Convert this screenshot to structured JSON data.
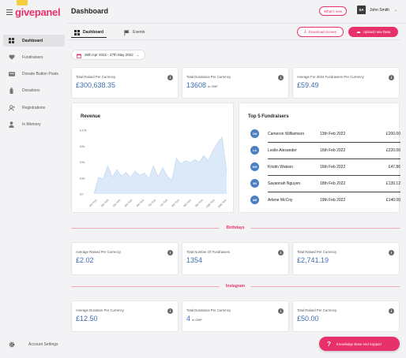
{
  "brand": {
    "name": "givepanel"
  },
  "sidebar": {
    "items": [
      {
        "label": "Dashboard",
        "icon": "grid-icon",
        "active": true
      },
      {
        "label": "Fundraisers",
        "icon": "heart-icon",
        "active": false
      },
      {
        "label": "Donate Button Posts",
        "icon": "card-icon",
        "active": false
      },
      {
        "label": "Donations",
        "icon": "money-icon",
        "active": false
      },
      {
        "label": "Registrations",
        "icon": "user-add-icon",
        "active": false
      },
      {
        "label": "In Memory",
        "icon": "user-icon",
        "active": false
      }
    ],
    "settings_label": "Account Settings"
  },
  "header": {
    "title": "Dashboard",
    "whats_new": "What's new",
    "user_initials": "SA",
    "user_name": "John Smith"
  },
  "tabs": [
    {
      "label": "Dashboard",
      "active": true
    },
    {
      "label": "Events",
      "active": false
    }
  ],
  "actions": {
    "download": "Download Screen",
    "upload": "Upload new Data"
  },
  "date_range": "26th Apr 2022 - 27th May 2022",
  "stats_top": [
    {
      "label": "Total Raised Per Currency",
      "value": "£300,638.35",
      "unit": ""
    },
    {
      "label": "Total Donations Per Currency",
      "value": "13608",
      "unit": "in GBP"
    },
    {
      "label": "Average For 2034 Fundraisers Per Currency",
      "value": "£59.49",
      "unit": ""
    }
  ],
  "revenue": {
    "title": "Revenue",
    "y_ticks": [
      "£10k",
      "£8k",
      "£5k",
      "£3k",
      "£0"
    ],
    "x_ticks": [
      "4th Feb",
      "5th Feb",
      "5th Feb",
      "6th Feb",
      "6th Feb",
      "7th Feb",
      "7th Feb",
      "8th Feb",
      "8th Feb",
      "9th Feb",
      "10th Feb",
      "10th Feb"
    ]
  },
  "chart_data": {
    "type": "area",
    "title": "Revenue",
    "xlabel": "",
    "ylabel": "",
    "ylim": [
      0,
      10000
    ],
    "x_tick_labels": [
      "4th Feb",
      "5th Feb",
      "5th Feb",
      "6th Feb",
      "6th Feb",
      "7th Feb",
      "7th Feb",
      "8th Feb",
      "8th Feb",
      "9th Feb",
      "10th Feb",
      "10th Feb"
    ],
    "values": [
      0,
      2600,
      2300,
      4400,
      2600,
      3800,
      2800,
      3400,
      2600,
      3600,
      2900,
      3300,
      2400,
      4400,
      2700,
      4100,
      2800,
      2100,
      5600,
      4700,
      5200,
      4900,
      5400,
      5000,
      6000,
      5200,
      6800,
      8000,
      8900,
      3500
    ],
    "fill": "#dce9f9",
    "stroke": "#b8d1f0"
  },
  "top_fundraisers": {
    "title": "Top 5 Fundraisers",
    "rows": [
      {
        "initials": "CW",
        "name": "Cameron Williamson",
        "date": "13th Feb 2022",
        "amount": "£200.00"
      },
      {
        "initials": "LA",
        "name": "Leslie Alexander",
        "date": "16th Feb 2022",
        "amount": "£220.00"
      },
      {
        "initials": "KW",
        "name": "Kristin Watson",
        "date": "16th Feb 2022",
        "amount": "£47.86"
      },
      {
        "initials": "SN",
        "name": "Savannah Nguyen",
        "date": "18th Feb 2022",
        "amount": "£139.12"
      },
      {
        "initials": "AM",
        "name": "Arlene McCoy",
        "date": "19th Feb 2022",
        "amount": "£140.00"
      }
    ]
  },
  "sections": [
    {
      "name": "Birthdays",
      "stats": [
        {
          "label": "Average Raised Per Currency",
          "value": "£2.02",
          "unit": ""
        },
        {
          "label": "Total Number Of Fundraisers",
          "value": "1354",
          "unit": ""
        },
        {
          "label": "Total Raised Per Currency",
          "value": "£2,741.19",
          "unit": ""
        }
      ]
    },
    {
      "name": "Instagram",
      "stats": [
        {
          "label": "Average Donation Per Currency",
          "value": "£12.50",
          "unit": ""
        },
        {
          "label": "Total Donations Per Currency",
          "value": "4",
          "unit": "in GBP"
        },
        {
          "label": "Total Raised Per Currency",
          "value": "£50.00",
          "unit": ""
        }
      ]
    }
  ],
  "help": {
    "label": "Knowledge Base And Support"
  },
  "colors": {
    "accent": "#e8316b",
    "value_blue": "#3f6db3",
    "avatar_blue": "#4a7fc1"
  }
}
